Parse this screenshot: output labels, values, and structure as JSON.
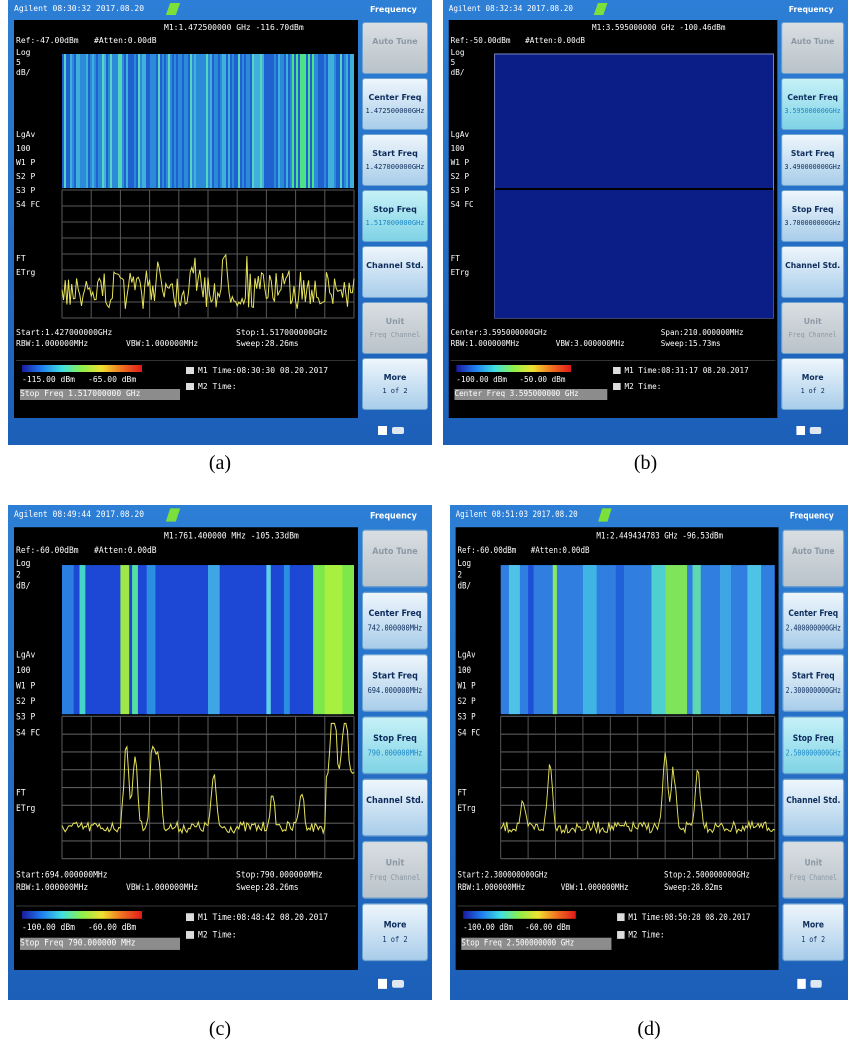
{
  "panels": [
    {
      "caption": "(a)",
      "status": "Agilent 08:30:32 2017.08.20",
      "menu_title": "Frequency",
      "marker": "M1:1.472500000 GHz -116.70dBm",
      "ref": "Ref:-47.00dBm",
      "atten": "#Atten:0.00dB",
      "scale": [
        "Log",
        "5",
        "dB/"
      ],
      "side_labels": [
        "LgAv",
        "100",
        "W1 P",
        "S2 P",
        "S3 P",
        "S4 FC",
        "FT",
        "ETrg"
      ],
      "footer_tl": "Start:1.427000000GHz",
      "footer_tr": "Stop:1.517000000GHz",
      "rbw": "RBW:1.000000MHz",
      "vbw": "VBW:1.000000MHz",
      "sweep": "Sweep:28.26ms",
      "color_min": "-115.00 dBm",
      "color_max": "-65.00 dBm",
      "m1_time": "M1 Time:08:30:30 08.20.2017",
      "m2_time": "M2 Time:",
      "entry": "Stop Freq 1.517000000 GHz",
      "active_key": 3,
      "softkeys": [
        {
          "label": "Auto Tune"
        },
        {
          "label": "Center Freq",
          "value": "1.472500000GHz"
        },
        {
          "label": "Start Freq",
          "value": "1.427000000GHz"
        },
        {
          "label": "Stop Freq",
          "value": "1.517000000GHz"
        },
        {
          "label": "Channel Std."
        },
        {
          "label": "Unit",
          "value": "Freq Channel"
        },
        {
          "label": "More",
          "value": "1 of 2"
        }
      ]
    },
    {
      "caption": "(b)",
      "status": "Agilent 08:32:34 2017.08.20",
      "menu_title": "Frequency",
      "marker": "M1:3.595000000 GHz -100.46dBm",
      "ref": "Ref:-50.00dBm",
      "atten": "#Atten:0.00dB",
      "scale": [
        "Log",
        "5",
        "dB/"
      ],
      "side_labels": [
        "LgAv",
        "100",
        "W1 P",
        "S2 P",
        "S3 P",
        "S4 FC",
        "FT",
        "ETrg"
      ],
      "footer_tl": "Center:3.595000000GHz",
      "footer_tr": "Span:210.000000MHz",
      "rbw": "RBW:1.000000MHz",
      "vbw": "VBW:3.000000MHz",
      "sweep": "Sweep:15.73ms",
      "color_min": "-100.00 dBm",
      "color_max": "-50.00 dBm",
      "m1_time": "M1 Time:08:31:17 08.20.2017",
      "m2_time": "M2 Time:",
      "entry": "Center Freq 3.595000000 GHz",
      "active_key": 1,
      "softkeys": [
        {
          "label": "Auto Tune"
        },
        {
          "label": "Center Freq",
          "value": "3.595000000GHz"
        },
        {
          "label": "Start Freq",
          "value": "3.490000000GHz"
        },
        {
          "label": "Stop Freq",
          "value": "3.700000000GHz"
        },
        {
          "label": "Channel Std."
        },
        {
          "label": "Unit",
          "value": "Freq Channel"
        },
        {
          "label": "More",
          "value": "1 of 2"
        }
      ]
    },
    {
      "caption": "(c)",
      "status": "Agilent 08:49:44 2017.08.20",
      "menu_title": "Frequency",
      "marker": "M1:761.400000 MHz -105.33dBm",
      "ref": "Ref:-60.00dBm",
      "atten": "#Atten:0.00dB",
      "scale": [
        "Log",
        "2",
        "dB/"
      ],
      "side_labels": [
        "LgAv",
        "100",
        "W1 P",
        "S2 P",
        "S3 P",
        "S4 FC",
        "FT",
        "ETrg"
      ],
      "footer_tl": "Start:694.000000MHz",
      "footer_tr": "Stop:790.000000MHz",
      "rbw": "RBW:1.000000MHz",
      "vbw": "VBW:1.000000MHz",
      "sweep": "Sweep:28.26ms",
      "color_min": "-100.00 dBm",
      "color_max": "-60.00 dBm",
      "m1_time": "M1 Time:08:48:42 08.20.2017",
      "m2_time": "M2 Time:",
      "entry": "Stop Freq 790.000000 MHz",
      "active_key": 3,
      "softkeys": [
        {
          "label": "Auto Tune"
        },
        {
          "label": "Center Freq",
          "value": "742.000000MHz"
        },
        {
          "label": "Start Freq",
          "value": "694.000000MHz"
        },
        {
          "label": "Stop Freq",
          "value": "790.000000MHz"
        },
        {
          "label": "Channel Std."
        },
        {
          "label": "Unit",
          "value": "Freq Channel"
        },
        {
          "label": "More",
          "value": "1 of 2"
        }
      ]
    },
    {
      "caption": "(d)",
      "status": "Agilent 08:51:03 2017.08.20",
      "menu_title": "Frequency",
      "marker": "M1:2.449434783 GHz -96.53dBm",
      "ref": "Ref:-60.00dBm",
      "atten": "#Atten:0.00dB",
      "scale": [
        "Log",
        "2",
        "dB/"
      ],
      "side_labels": [
        "LgAv",
        "100",
        "W1 P",
        "S2 P",
        "S3 P",
        "S4 FC",
        "FT",
        "ETrg"
      ],
      "footer_tl": "Start:2.300000000GHz",
      "footer_tr": "Stop:2.500000000GHz",
      "rbw": "RBW:1.000000MHz",
      "vbw": "VBW:1.000000MHz",
      "sweep": "Sweep:28.82ms",
      "color_min": "-100.00 dBm",
      "color_max": "-60.00 dBm",
      "m1_time": "M1 Time:08:50:28 08.20.2017",
      "m2_time": "M2 Time:",
      "entry": "Stop Freq 2.500000000 GHz",
      "active_key": 3,
      "softkeys": [
        {
          "label": "Auto Tune"
        },
        {
          "label": "Center Freq",
          "value": "2.400000000GHz"
        },
        {
          "label": "Start Freq",
          "value": "2.300000000GHz"
        },
        {
          "label": "Stop Freq",
          "value": "2.500000000GHz"
        },
        {
          "label": "Channel Std."
        },
        {
          "label": "Unit",
          "value": "Freq Channel"
        },
        {
          "label": "More",
          "value": "1 of 2"
        }
      ]
    }
  ]
}
